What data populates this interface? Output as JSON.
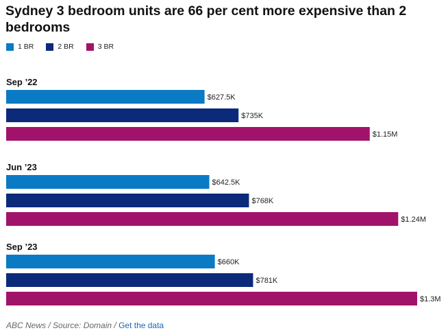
{
  "title": "Sydney 3 bedroom units are 66 per cent more expensive than 2 bedrooms",
  "legend": [
    {
      "label": "1 BR",
      "color": "#0a7ac4"
    },
    {
      "label": "2 BR",
      "color": "#0b2a7a"
    },
    {
      "label": "3 BR",
      "color": "#a1136b"
    }
  ],
  "chart_data": {
    "type": "bar",
    "orientation": "horizontal",
    "categories": [
      "Sep ’22",
      "Jun ’23",
      "Sep ’23"
    ],
    "series": [
      {
        "name": "1 BR",
        "color": "#0a7ac4",
        "values": [
          627500,
          642500,
          660000
        ],
        "labels": [
          "$627.5K",
          "$642.5K",
          "$660K"
        ]
      },
      {
        "name": "2 BR",
        "color": "#0b2a7a",
        "values": [
          735000,
          768000,
          781000
        ],
        "labels": [
          "$735K",
          "$768K",
          "$781K"
        ]
      },
      {
        "name": "3 BR",
        "color": "#a1136b",
        "values": [
          1150000,
          1240000,
          1300000
        ],
        "labels": [
          "$1.15M",
          "$1.24M",
          "$1.3M"
        ]
      }
    ],
    "xlim": [
      0,
      1300000
    ],
    "grid": false,
    "legend_position": "top-left"
  },
  "footer": {
    "source": "ABC News / Source: Domain / ",
    "link": "Get the data"
  }
}
